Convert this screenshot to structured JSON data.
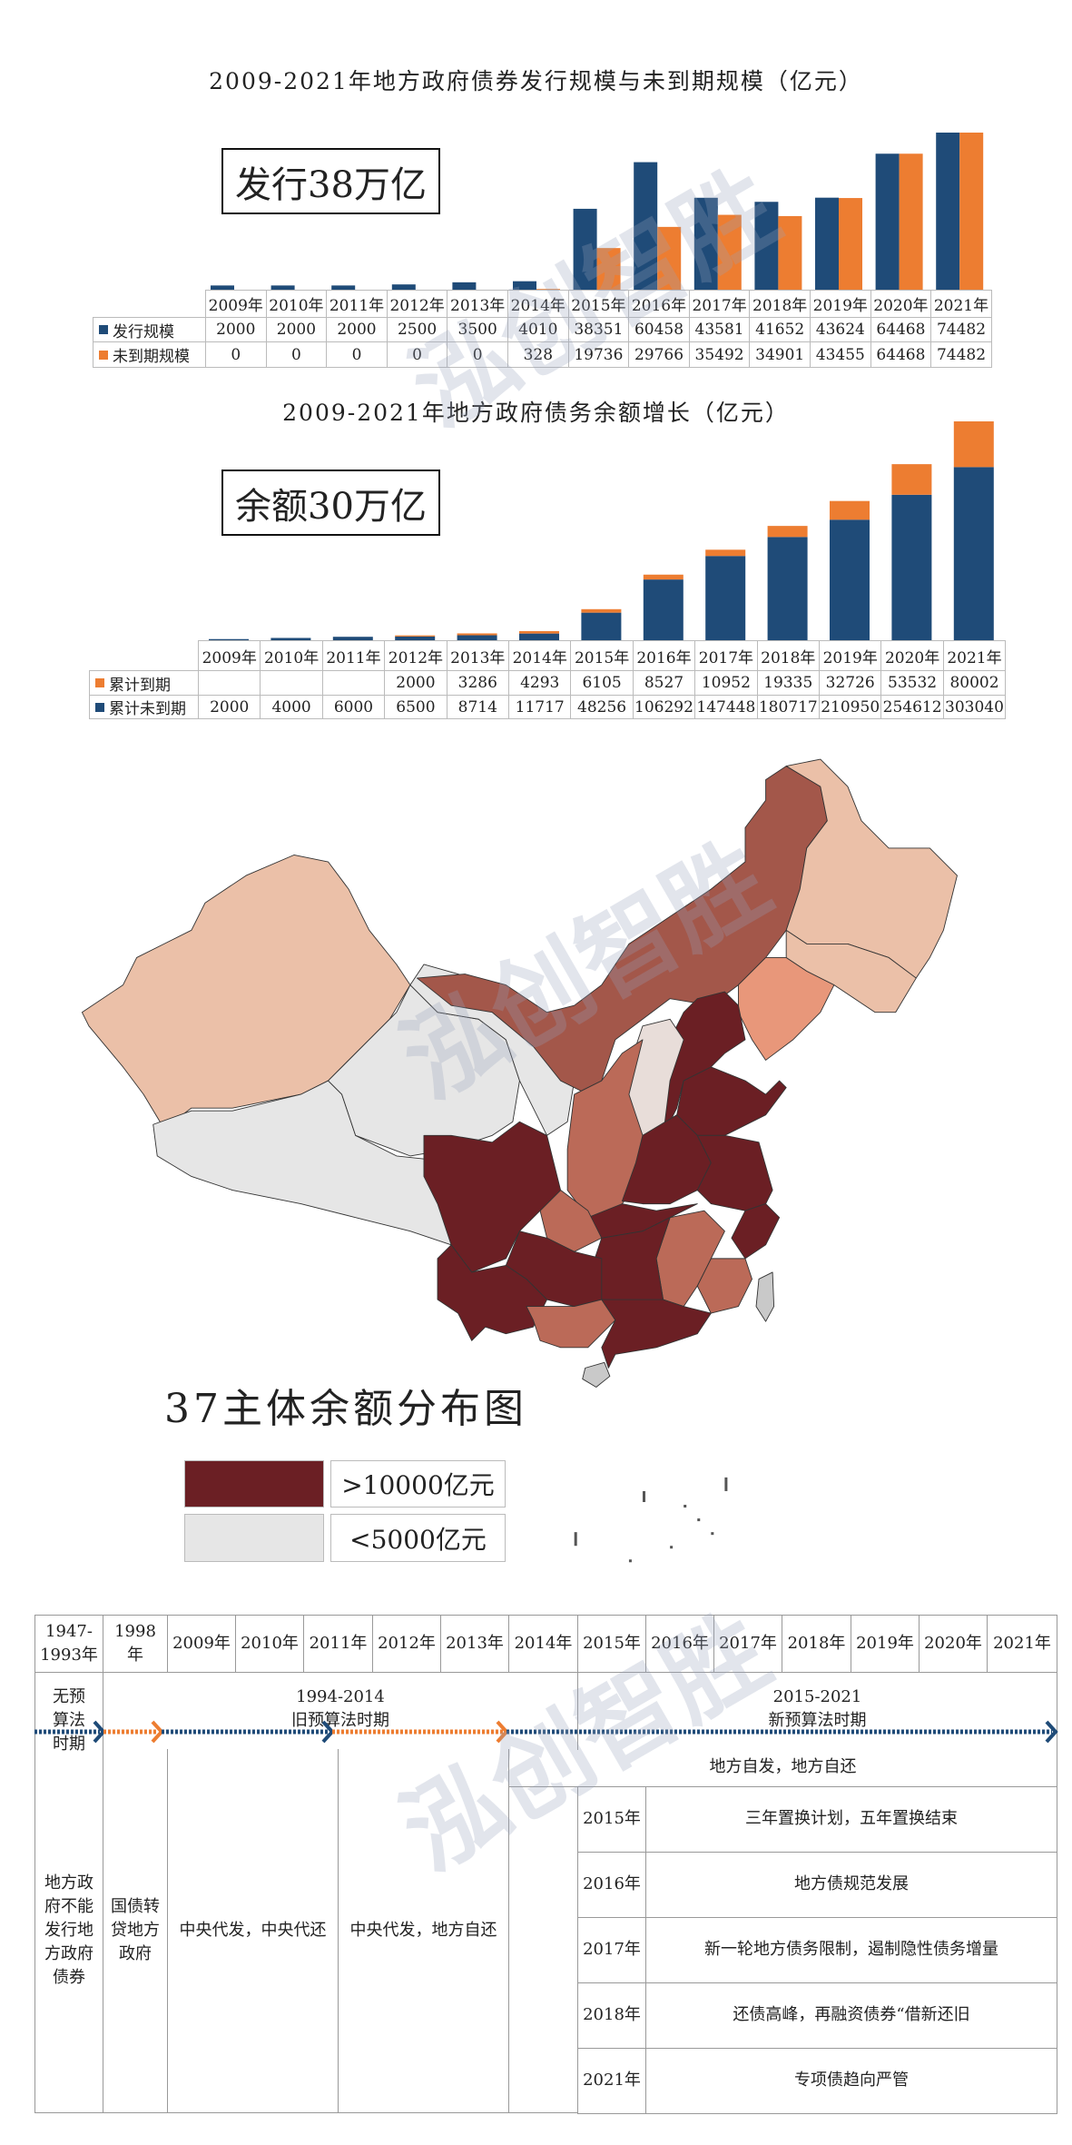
{
  "colors": {
    "issue": "#1f4b78",
    "outstanding": "#ed7d31",
    "map_high": "#6b1f24",
    "map_mid": "#a3574a",
    "map_mid2": "#bb6a58",
    "map_light": "#ebc0a8",
    "map_orange": "#e8977a",
    "map_low": "#e6e6e6",
    "map_pale": "#e8ddd9",
    "map_island": "#c9c9c9"
  },
  "watermark": "泓创智胜",
  "chart_data": [
    {
      "type": "bar",
      "title": "2009-2021年地方政府债券发行规模与未到期规模（亿元）",
      "callout": "发行38万亿",
      "categories": [
        "2009年",
        "2010年",
        "2011年",
        "2012年",
        "2013年",
        "2014年",
        "2015年",
        "2016年",
        "2017年",
        "2018年",
        "2019年",
        "2020年",
        "2021年"
      ],
      "series": [
        {
          "name": "发行规模",
          "color": "#1f4b78",
          "values": [
            2000,
            2000,
            2000,
            2500,
            3500,
            4010,
            38351,
            60458,
            43581,
            41652,
            43624,
            64468,
            74482
          ]
        },
        {
          "name": "未到期规模",
          "color": "#ed7d31",
          "values": [
            0,
            0,
            0,
            0,
            0,
            328,
            19736,
            29766,
            35492,
            34901,
            43455,
            64468,
            74482
          ]
        }
      ]
    },
    {
      "type": "bar",
      "stacked": true,
      "title": "2009-2021年地方政府债务余额增长（亿元）",
      "callout": "余额30万亿",
      "categories": [
        "2009年",
        "2010年",
        "2011年",
        "2012年",
        "2013年",
        "2014年",
        "2015年",
        "2016年",
        "2017年",
        "2018年",
        "2019年",
        "2020年",
        "2021年"
      ],
      "series": [
        {
          "name": "累计到期",
          "color": "#ed7d31",
          "values": [
            null,
            null,
            null,
            2000,
            3286,
            4293,
            6105,
            8527,
            10952,
            19335,
            32726,
            53532,
            80002
          ]
        },
        {
          "name": "累计未到期",
          "color": "#1f4b78",
          "values": [
            2000,
            4000,
            6000,
            6500,
            8714,
            11717,
            48256,
            106292,
            147448,
            180717,
            210950,
            254612,
            303040
          ]
        }
      ]
    }
  ],
  "map": {
    "title": "37主体余额分布图",
    "legend": [
      {
        "label": ">10000亿元",
        "color": "#6b1f24"
      },
      {
        "label": "<5000亿元",
        "color": "#e6e6e6"
      }
    ]
  },
  "timeline": {
    "years": [
      "1947-1993年",
      "1998年",
      "2009年",
      "2010年",
      "2011年",
      "2012年",
      "2013年",
      "2014年",
      "2015年",
      "2016年",
      "2017年",
      "2018年",
      "2019年",
      "2020年",
      "2021年"
    ],
    "periods": [
      {
        "range": "",
        "name": "无预算法时期"
      },
      {
        "range": "1994-2014",
        "name": "旧预算法时期"
      },
      {
        "range": "2015-2021",
        "name": "新预算法时期"
      }
    ],
    "phases": [
      "地方政府不能发行地方政府债券",
      "国债转贷地方政府",
      "中央代发，中央代还",
      "中央代发，地方自还",
      "地方自发，地方自还"
    ],
    "events": [
      {
        "year": "2015年",
        "text": "三年置换计划，五年置换结束"
      },
      {
        "year": "2016年",
        "text": "地方债规范发展"
      },
      {
        "year": "2017年",
        "text": "新一轮地方债务限制，遏制隐性债务增量"
      },
      {
        "year": "2018年",
        "text": "还债高峰，再融资债券“借新还旧"
      },
      {
        "year": "2021年",
        "text": "专项债趋向严管"
      }
    ]
  }
}
